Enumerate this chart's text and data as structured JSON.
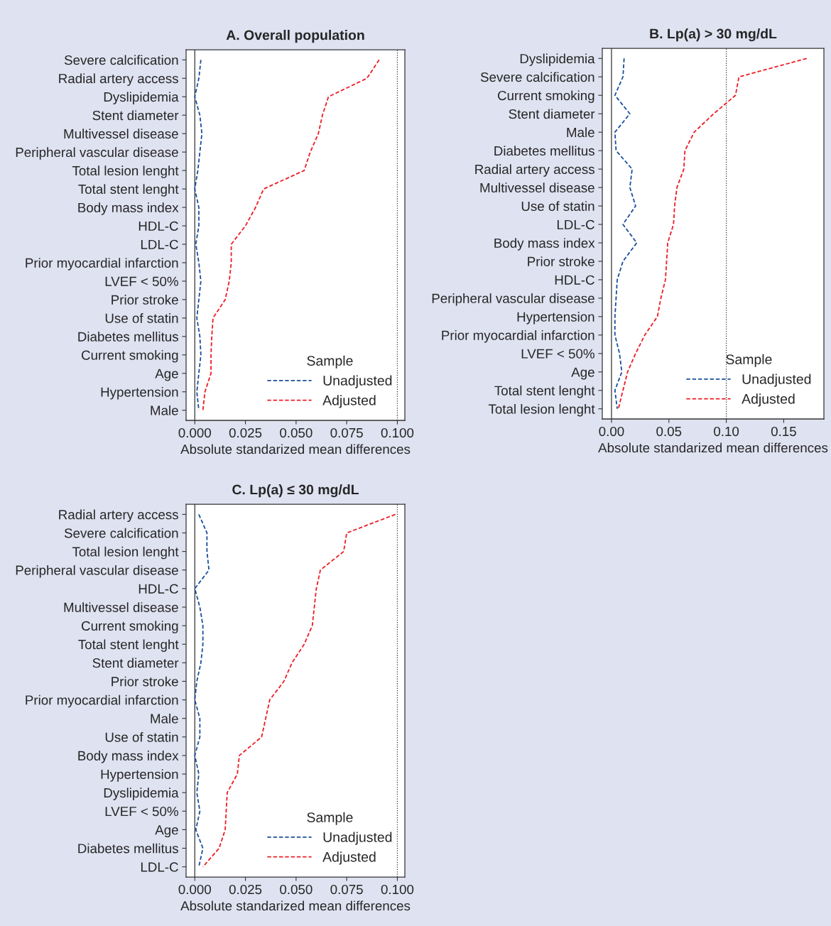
{
  "chart_data": [
    {
      "type": "line",
      "orientation": "horizontal",
      "title": "A. Overall population",
      "xlabel": "Absolute standarized mean differences",
      "legend_title": "Sample",
      "legend": "bottom right",
      "grid": false,
      "line_style": "dashed",
      "marker": "none",
      "categories": [
        "Severe calcification",
        "Radial artery access",
        "Dyslipidemia",
        "Stent diameter",
        "Multivessel disease",
        "Peripheral vascular disease",
        "Total lesion lenght",
        "Total stent lenght",
        "Body mass index",
        "HDL-C",
        "LDL-C",
        "Prior myocardial infarction",
        "LVEF < 50%",
        "Prior stroke",
        "Use of statin",
        "Diabetes mellitus",
        "Current smoking",
        "Age",
        "Hypertension",
        "Male"
      ],
      "xlim": [
        -0.0043,
        0.1037
      ],
      "xticks": [
        {
          "value": 0,
          "label": "0.000"
        },
        {
          "value": 0.025,
          "label": "0.025"
        },
        {
          "value": 0.05,
          "label": "0.050"
        },
        {
          "value": 0.075,
          "label": "0.075"
        },
        {
          "value": 0.1,
          "label": "0.100"
        }
      ],
      "ref_lines": [
        {
          "axis": "x",
          "value": 0,
          "color": "#333333",
          "line_style": "solid"
        },
        {
          "axis": "x",
          "value": 0.1,
          "color": "#333333",
          "line_style": "dotted"
        }
      ],
      "series": [
        {
          "name": "Unadjusted",
          "color": "#1a4f9c",
          "values": [
            0.003,
            0.002,
            0,
            0.0025,
            0.0035,
            0.0025,
            0.0015,
            0,
            0.002,
            0.002,
            0.0005,
            0.002,
            0.003,
            0.002,
            0.001,
            0.0025,
            0.003,
            0.002,
            0.001,
            0.002
          ]
        },
        {
          "name": "Adjusted",
          "color": "#ee1c25",
          "values": [
            0.091,
            0.085,
            0.066,
            0.063,
            0.061,
            0.057,
            0.054,
            0.034,
            0.03,
            0.025,
            0.018,
            0.018,
            0.017,
            0.015,
            0.009,
            0.0084,
            0.008,
            0.008,
            0.005,
            0.004
          ]
        }
      ]
    },
    {
      "type": "line",
      "orientation": "horizontal",
      "title": "B. Lp(a) > 30 mg/dL",
      "xlabel": "Absolute standarized mean differences",
      "legend_title": "Sample",
      "legend": "bottom right",
      "grid": false,
      "line_style": "dashed",
      "marker": "none",
      "categories": [
        "Dyslipidemia",
        "Severe calcification",
        "Current smoking",
        "Stent diameter",
        "Male",
        "Diabetes mellitus",
        "Radial artery access",
        "Multivessel disease",
        "Use of statin",
        "LDL-C",
        "Body mass index",
        "Prior stroke",
        "HDL-C",
        "Peripheral vascular disease",
        "Hypertension",
        "Prior myocardial infarction",
        "LVEF < 50%",
        "Age",
        "Total stent lenght",
        "Total lesion lenght"
      ],
      "xlim": [
        -0.008,
        0.185
      ],
      "xticks": [
        {
          "value": 0,
          "label": "0.00"
        },
        {
          "value": 0.05,
          "label": "0.05"
        },
        {
          "value": 0.1,
          "label": "0.10"
        },
        {
          "value": 0.15,
          "label": "0.15"
        }
      ],
      "ref_lines": [
        {
          "axis": "x",
          "value": 0,
          "color": "#333333",
          "line_style": "solid"
        },
        {
          "axis": "x",
          "value": 0.1,
          "color": "#333333",
          "line_style": "dotted"
        }
      ],
      "series": [
        {
          "name": "Unadjusted",
          "color": "#1a4f9c",
          "values": [
            0.011,
            0.01,
            0.003,
            0.016,
            0.003,
            0.004,
            0.018,
            0.016,
            0.021,
            0.01,
            0.022,
            0.01,
            0.005,
            0.004,
            0.003,
            0.003,
            0.007,
            0.009,
            0.003,
            0.005
          ]
        },
        {
          "name": "Adjusted",
          "color": "#ee1c25",
          "values": [
            0.17,
            0.111,
            0.108,
            0.089,
            0.072,
            0.064,
            0.063,
            0.057,
            0.055,
            0.054,
            0.049,
            0.048,
            0.047,
            0.043,
            0.04,
            0.029,
            0.021,
            0.014,
            0.01,
            0.006
          ]
        }
      ]
    },
    {
      "type": "line",
      "orientation": "horizontal",
      "title": "C. Lp(a) ≤ 30 mg/dL",
      "xlabel": "Absolute standarized mean differences",
      "legend_title": "Sample",
      "legend": "bottom right",
      "grid": false,
      "line_style": "dashed",
      "marker": "none",
      "categories": [
        "Radial artery access",
        "Severe calcification",
        "Total lesion lenght",
        "Peripheral vascular disease",
        "HDL-C",
        "Multivessel disease",
        "Current smoking",
        "Total stent lenght",
        "Stent diameter",
        "Prior stroke",
        "Prior myocardial infarction",
        "Male",
        "Use of statin",
        "Body mass index",
        "Hypertension",
        "Dyslipidemia",
        "LVEF < 50%",
        "Age",
        "Diabetes mellitus",
        "LDL-C"
      ],
      "xlim": [
        -0.0043,
        0.1037
      ],
      "xticks": [
        {
          "value": 0,
          "label": "0.000"
        },
        {
          "value": 0.025,
          "label": "0.025"
        },
        {
          "value": 0.05,
          "label": "0.050"
        },
        {
          "value": 0.075,
          "label": "0.075"
        },
        {
          "value": 0.1,
          "label": "0.100"
        }
      ],
      "ref_lines": [
        {
          "axis": "x",
          "value": 0,
          "color": "#333333",
          "line_style": "solid"
        },
        {
          "axis": "x",
          "value": 0.1,
          "color": "#333333",
          "line_style": "dotted"
        }
      ],
      "series": [
        {
          "name": "Unadjusted",
          "color": "#1a4f9c",
          "values": [
            0.002,
            0.006,
            0.006,
            0.007,
            0,
            0.0025,
            0.004,
            0.004,
            0.003,
            0.001,
            0,
            0.0025,
            0.0025,
            0,
            0.002,
            0.001,
            0.0025,
            0.0005,
            0.004,
            0.002
          ]
        },
        {
          "name": "Adjusted",
          "color": "#ee1c25",
          "values": [
            0.099,
            0.075,
            0.0735,
            0.062,
            0.06,
            0.059,
            0.058,
            0.054,
            0.048,
            0.044,
            0.037,
            0.035,
            0.033,
            0.022,
            0.021,
            0.016,
            0.0155,
            0.015,
            0.012,
            0.004
          ]
        }
      ]
    }
  ]
}
